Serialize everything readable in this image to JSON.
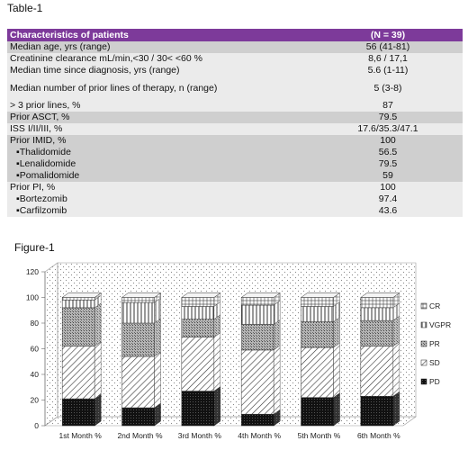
{
  "table_caption": "Table-1",
  "table": {
    "header": [
      "Characteristics of patients",
      "(N = 39)"
    ],
    "rows": [
      {
        "label": "Median age, yrs (range)",
        "value": "56 (41-81)"
      },
      {
        "label": "Creatinine clearance mL/min,<30 / 30< <60 %",
        "value": "8,6 / 17,1"
      },
      {
        "label": "Median time since diagnosis, yrs (range)",
        "value": "5.6 (1-11)"
      },
      {
        "label": "Median number of prior lines of therapy, n (range)",
        "value": "5 (3-8)"
      },
      {
        "label": "> 3 prior lines, %",
        "value": "87"
      },
      {
        "label": "Prior ASCT, %",
        "value": "79.5"
      },
      {
        "label": "ISS I/II/III, %",
        "value": "17.6/35.3/47.1"
      },
      {
        "label": "Prior IMID, %",
        "value": "100"
      },
      {
        "label": "▪Thalidomide",
        "value": "56.5"
      },
      {
        "label": "▪Lenalidomide",
        "value": "79.5"
      },
      {
        "label": "▪Pomalidomide",
        "value": "59"
      },
      {
        "label": "Prior PI, %",
        "value": "100"
      },
      {
        "label": "▪Bortezomib",
        "value": "97.4"
      },
      {
        "label": "▪Carfilzomib",
        "value": "43.6"
      }
    ]
  },
  "figure_caption": "Figure-1",
  "chart_data": {
    "type": "bar",
    "stacked": true,
    "categories": [
      "1st Month %",
      "2nd Month %",
      "3rd Month %",
      "4th Month %",
      "5th Month %",
      "6th Month %"
    ],
    "series": [
      {
        "name": "PD",
        "values": [
          21,
          14,
          27,
          9,
          22,
          23
        ]
      },
      {
        "name": "SD",
        "values": [
          41,
          40,
          42,
          50,
          39,
          39
        ]
      },
      {
        "name": "PR",
        "values": [
          30,
          26,
          14,
          20,
          20,
          20
        ]
      },
      {
        "name": "VGPR",
        "values": [
          6,
          16,
          10,
          15,
          12,
          10
        ]
      },
      {
        "name": "CR",
        "values": [
          2,
          4,
          7,
          6,
          7,
          8
        ]
      }
    ],
    "yticks": [
      0,
      20,
      40,
      60,
      80,
      100,
      120
    ],
    "ylim": [
      0,
      120
    ],
    "legend_order": [
      "CR",
      "VGPR",
      "PR",
      "SD",
      "PD"
    ],
    "legend_position": "right",
    "grid": false
  }
}
